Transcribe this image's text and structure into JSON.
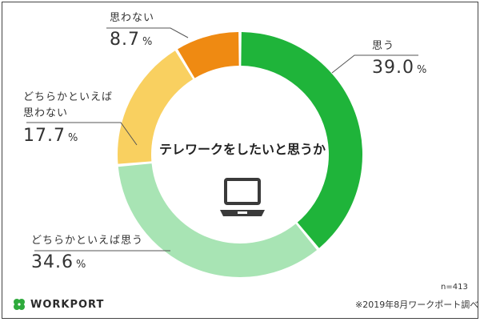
{
  "chart_data": {
    "type": "pie",
    "title": "テレワークをしたいと思うか",
    "slices": [
      {
        "label": "思う",
        "value": 39.0,
        "display": "39.0",
        "color": "#1fb43a"
      },
      {
        "label": "どちらかといえば思う",
        "value": 34.6,
        "display": "34.6",
        "color": "#a8e4b4"
      },
      {
        "label": "どちらかといえば思わない",
        "value": 17.7,
        "display": "17.7",
        "color": "#f9d060"
      },
      {
        "label": "思わない",
        "value": 8.7,
        "display": "8.7",
        "color": "#ef8a12"
      }
    ],
    "unit": "%"
  },
  "labels": {
    "s0_cat": "思う",
    "s1_cat": "どちらかといえば思う",
    "s2_cat_line1": "どちらかといえば",
    "s2_cat_line2": "思わない",
    "s3_cat": "思わない"
  },
  "footnote": {
    "n": "n=413",
    "source": "※2019年8月ワークポート調べ"
  },
  "brand": {
    "name": "WORKPORT",
    "logo_icon": "four-leaf-clover-icon",
    "logo_color": "#2eaa3c"
  },
  "icons": {
    "center": "laptop-icon"
  }
}
